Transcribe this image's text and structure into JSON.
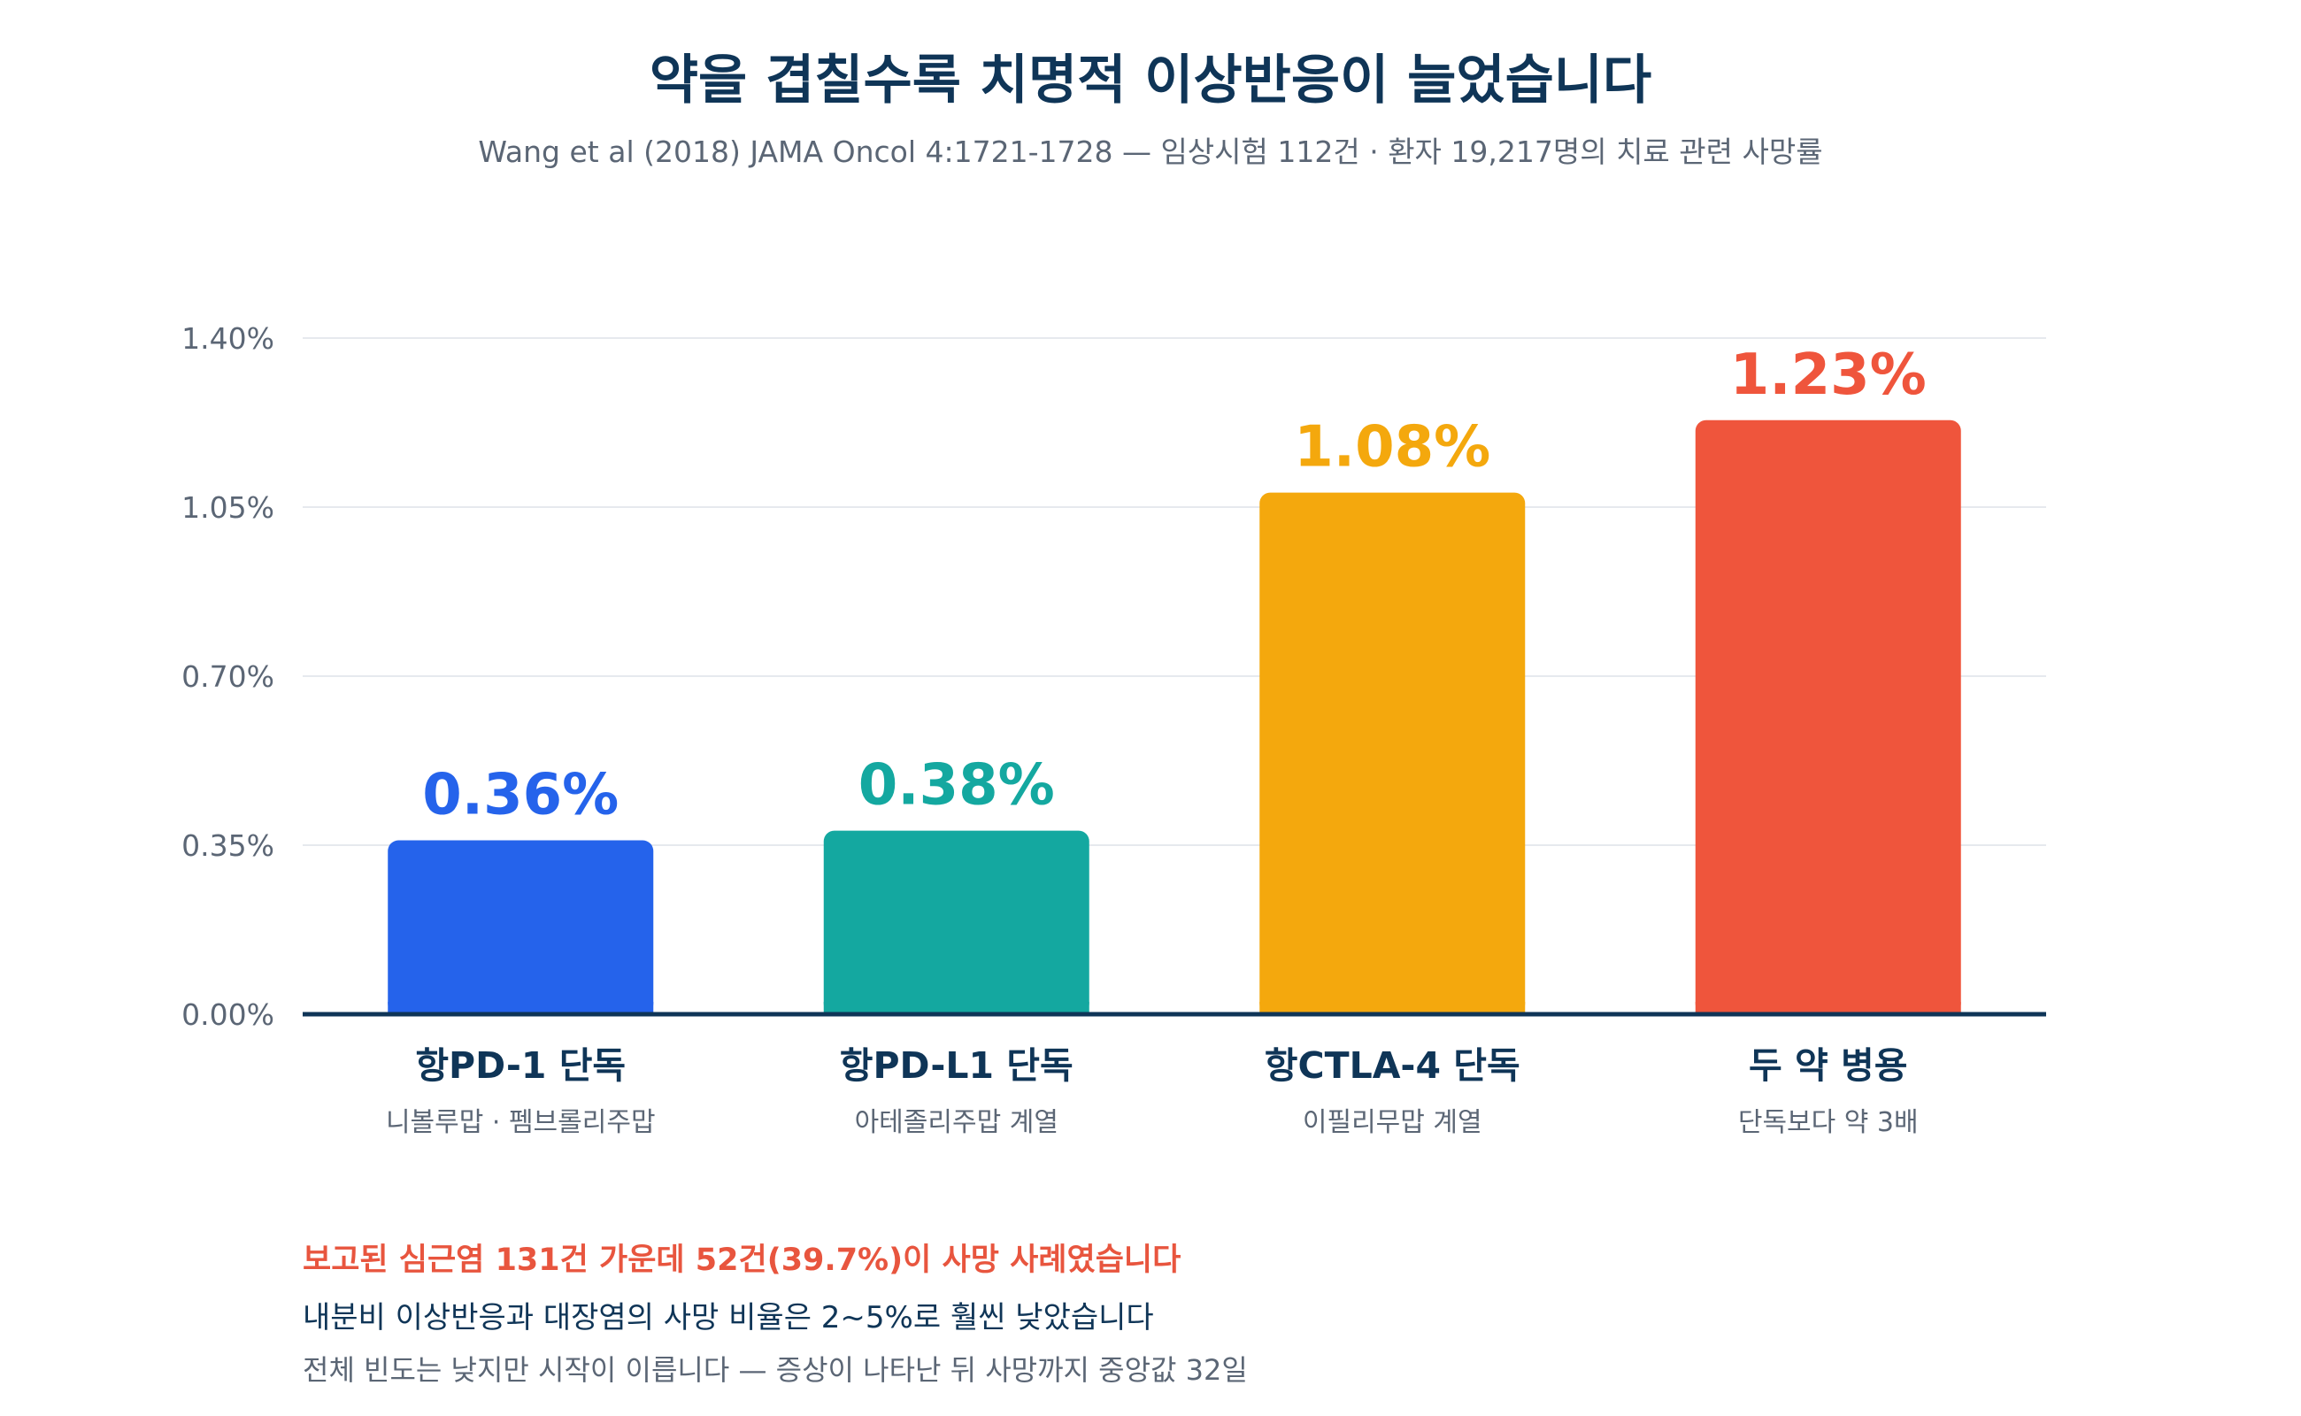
{
  "header": {
    "title": "약을 겹칠수록 치명적 이상반응이 늘었습니다",
    "subtitle": "Wang et al (2018) JAMA Oncol 4:1721-1728 — 임상시험 112건 · 환자 19,217명의 치료 관련 사망률"
  },
  "chart_data": {
    "type": "bar",
    "title": "약을 겹칠수록 치명적 이상반응이 늘었습니다",
    "subtitle": "Wang et al (2018) JAMA Oncol 4:1721-1728 — 임상시험 112건 · 환자 19,217명의 치료 관련 사망률",
    "categories": [
      "항PD-1 단독",
      "항PD-L1 단독",
      "항CTLA-4 단독",
      "두 약 병용"
    ],
    "category_sublabels": [
      "니볼루맙 · 펨브롤리주맙",
      "아테졸리주맙 계열",
      "이필리무맙 계열",
      "단독보다 약 3배"
    ],
    "values": [
      0.36,
      0.38,
      1.08,
      1.23
    ],
    "value_labels": [
      "0.36%",
      "0.38%",
      "1.08%",
      "1.23%"
    ],
    "colors": [
      "#2563eb",
      "#14a8a0",
      "#f4a80d",
      "#ef553c"
    ],
    "ylim": [
      0,
      1.4
    ],
    "yticks": [
      0,
      0.35,
      0.7,
      1.05,
      1.4
    ],
    "ytick_labels": [
      "0.00%",
      "0.35%",
      "0.70%",
      "1.05%",
      "1.40%"
    ],
    "xlabel": "",
    "ylabel": "",
    "grid": true,
    "legend": false
  },
  "notes": {
    "line1": "보고된 심근염 131건 가운데 52건(39.7%)이 사망 사례였습니다",
    "line2": "내분비 이상반응과 대장염의 사망 비율은 2~5%로 훨씬 낮았습니다",
    "line3": "전체 빈도는 낮지만 시작이 이릅니다 — 증상이 나타난 뒤 사망까지 중앙값 32일"
  },
  "colors": {
    "title": "#0f3557",
    "muted": "#5b6675",
    "highlight": "#e8553e",
    "grid": "#e6e9ee",
    "axis": "#0f3557"
  }
}
